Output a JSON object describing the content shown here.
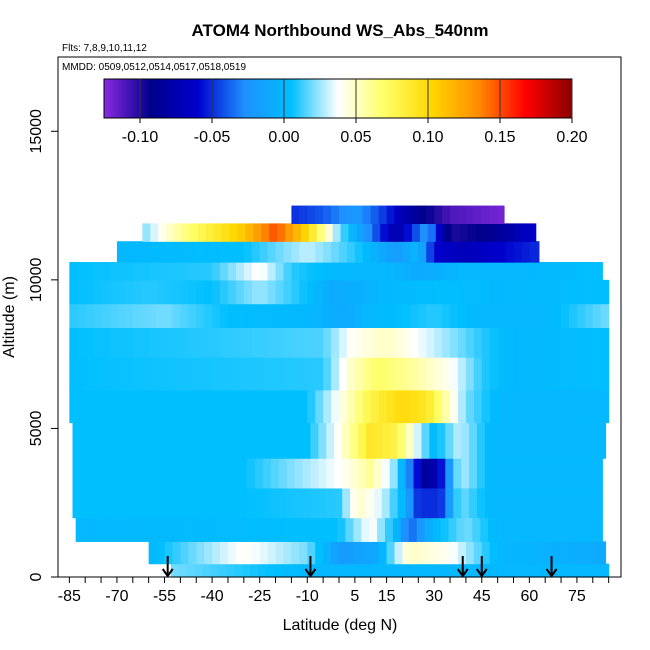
{
  "chart_data": {
    "type": "heatmap",
    "title": "ATOM4 Northbound WS_Abs_540nm",
    "subtitle_flights": "Flts: 7,8,9,10,11,12",
    "subtitle_dates": "MMDD: 0509,0512,0514,0517,0518,0519",
    "xlabel": "Latitude (deg N)",
    "ylabel": "Altitude (m)",
    "xlim": [
      -87,
      87
    ],
    "ylim": [
      0,
      17500
    ],
    "x_ticks": [
      -85,
      -70,
      -55,
      -40,
      -25,
      -10,
      5,
      15,
      30,
      45,
      60,
      75
    ],
    "x_minor_ticks": [
      -85,
      -80,
      -75,
      -70,
      -65,
      -60,
      -55,
      -50,
      -45,
      -40,
      -35,
      -30,
      -25,
      -20,
      -15,
      -10,
      -5,
      0,
      5,
      10,
      15,
      20,
      25,
      30,
      35,
      40,
      45,
      50,
      55,
      60,
      65,
      70,
      75,
      80,
      85
    ],
    "y_ticks": [
      0,
      5000,
      10000,
      15000
    ],
    "colorbar": {
      "min": -0.125,
      "max": 0.2,
      "ticks": [
        -0.1,
        -0.05,
        0.0,
        0.05,
        0.1,
        0.15,
        0.2
      ],
      "tick_labels": [
        "-0.10",
        "-0.05",
        "0.00",
        "0.05",
        "0.10",
        "0.15",
        "0.20"
      ],
      "colors": [
        "#8a2be2",
        "#00008b",
        "#0000cd",
        "#1e90ff",
        "#00bfff",
        "#ffffff",
        "#ffff66",
        "#ffd700",
        "#ff8c00",
        "#ff0000",
        "#8b0000"
      ]
    },
    "profile_markers_latitude": [
      -54,
      -9,
      39,
      45,
      67
    ],
    "bands": [
      {
        "alt": [
          0,
          450
        ],
        "lat": [
          -53,
          85
        ],
        "pts": [
          [
            -53,
            0.02
          ],
          [
            -10,
            0.0
          ],
          [
            15,
            0.0
          ],
          [
            40,
            0.0
          ],
          [
            85,
            0.0
          ]
        ]
      },
      {
        "alt": [
          450,
          1200
        ],
        "lat": [
          -60,
          84
        ],
        "pts": [
          [
            -60,
            0.0
          ],
          [
            -45,
            0.02
          ],
          [
            -30,
            0.04
          ],
          [
            -10,
            0.02
          ],
          [
            0,
            -0.02
          ],
          [
            12,
            -0.01
          ],
          [
            22,
            0.05
          ],
          [
            35,
            0.04
          ],
          [
            50,
            0.0
          ],
          [
            84,
            -0.01
          ]
        ]
      },
      {
        "alt": [
          1200,
          2000
        ],
        "lat": [
          -83,
          83
        ],
        "pts": [
          [
            -83,
            0.0
          ],
          [
            0,
            0.005
          ],
          [
            10,
            0.04
          ],
          [
            18,
            0.0
          ],
          [
            22,
            -0.04
          ],
          [
            30,
            0.0
          ],
          [
            40,
            0.02
          ],
          [
            50,
            0.0
          ],
          [
            83,
            0.0
          ]
        ]
      },
      {
        "alt": [
          2000,
          3000
        ],
        "lat": [
          -84,
          83
        ],
        "pts": [
          [
            -84,
            0.005
          ],
          [
            -30,
            0.005
          ],
          [
            0,
            0.01
          ],
          [
            6,
            0.05
          ],
          [
            14,
            0.03
          ],
          [
            20,
            0.0
          ],
          [
            25,
            -0.05
          ],
          [
            32,
            -0.05
          ],
          [
            38,
            0.02
          ],
          [
            48,
            0.0
          ],
          [
            83,
            0.0
          ]
        ]
      },
      {
        "alt": [
          3000,
          4000
        ],
        "lat": [
          -84,
          83
        ],
        "pts": [
          [
            -84,
            0.005
          ],
          [
            -30,
            0.005
          ],
          [
            2,
            0.04
          ],
          [
            10,
            0.06
          ],
          [
            18,
            0.02
          ],
          [
            23,
            -0.04
          ],
          [
            28,
            -0.09
          ],
          [
            33,
            -0.05
          ],
          [
            38,
            0.03
          ],
          [
            48,
            0.0
          ],
          [
            83,
            0.0
          ]
        ]
      },
      {
        "alt": [
          4000,
          5200
        ],
        "lat": [
          -84,
          84
        ],
        "pts": [
          [
            -84,
            0.005
          ],
          [
            -10,
            0.005
          ],
          [
            0,
            0.04
          ],
          [
            10,
            0.09
          ],
          [
            18,
            0.08
          ],
          [
            25,
            0.03
          ],
          [
            30,
            0.0
          ],
          [
            38,
            0.03
          ],
          [
            48,
            0.0
          ],
          [
            84,
            0.0
          ]
        ]
      },
      {
        "alt": [
          5200,
          6300
        ],
        "lat": [
          -85,
          85
        ],
        "pts": [
          [
            -85,
            0.005
          ],
          [
            -10,
            0.005
          ],
          [
            0,
            0.04
          ],
          [
            10,
            0.08
          ],
          [
            20,
            0.1
          ],
          [
            28,
            0.09
          ],
          [
            33,
            0.06
          ],
          [
            40,
            0.02
          ],
          [
            50,
            0.0
          ],
          [
            85,
            0.0
          ]
        ]
      },
      {
        "alt": [
          6300,
          7400
        ],
        "lat": [
          -85,
          85
        ],
        "pts": [
          [
            -85,
            0.005
          ],
          [
            -5,
            0.01
          ],
          [
            4,
            0.05
          ],
          [
            12,
            0.07
          ],
          [
            22,
            0.06
          ],
          [
            35,
            0.04
          ],
          [
            45,
            0.01
          ],
          [
            55,
            0.0
          ],
          [
            85,
            0.005
          ]
        ]
      },
      {
        "alt": [
          7400,
          8400
        ],
        "lat": [
          -85,
          85
        ],
        "pts": [
          [
            -85,
            0.005
          ],
          [
            -40,
            0.01
          ],
          [
            -5,
            0.015
          ],
          [
            4,
            0.04
          ],
          [
            15,
            0.05
          ],
          [
            30,
            0.03
          ],
          [
            45,
            0.01
          ],
          [
            55,
            0.0
          ],
          [
            85,
            0.005
          ]
        ]
      },
      {
        "alt": [
          8400,
          9200
        ],
        "lat": [
          -85,
          85
        ],
        "pts": [
          [
            -85,
            0.01
          ],
          [
            -55,
            0.02
          ],
          [
            -35,
            0.005
          ],
          [
            -10,
            0.0
          ],
          [
            2,
            -0.01
          ],
          [
            10,
            0.0
          ],
          [
            30,
            0.01
          ],
          [
            45,
            0.0
          ],
          [
            65,
            0.0
          ],
          [
            85,
            0.02
          ]
        ]
      },
      {
        "alt": [
          9200,
          10000
        ],
        "lat": [
          -85,
          85
        ],
        "pts": [
          [
            -85,
            0.005
          ],
          [
            -60,
            0.01
          ],
          [
            -40,
            0.005
          ],
          [
            -25,
            0.025
          ],
          [
            -10,
            0.005
          ],
          [
            -2,
            -0.01
          ],
          [
            15,
            0.0
          ],
          [
            35,
            0.005
          ],
          [
            50,
            0.0
          ],
          [
            85,
            0.005
          ]
        ]
      },
      {
        "alt": [
          10000,
          10600
        ],
        "lat": [
          -85,
          83
        ],
        "pts": [
          [
            -85,
            0.005
          ],
          [
            -40,
            0.01
          ],
          [
            -25,
            0.04
          ],
          [
            -15,
            0.01
          ],
          [
            0,
            0.0
          ],
          [
            15,
            0.0
          ],
          [
            25,
            -0.01
          ],
          [
            40,
            0.0
          ],
          [
            60,
            0.0
          ],
          [
            83,
            0.005
          ]
        ]
      },
      {
        "alt": [
          10600,
          11300
        ],
        "lat": [
          -70,
          63
        ],
        "pts": [
          [
            -70,
            0.0
          ],
          [
            -30,
            0.005
          ],
          [
            -10,
            0.03
          ],
          [
            5,
            0.01
          ],
          [
            18,
            -0.02
          ],
          [
            25,
            0.0
          ],
          [
            30,
            -0.06
          ],
          [
            40,
            -0.07
          ],
          [
            63,
            -0.05
          ]
        ]
      },
      {
        "alt": [
          11300,
          11900
        ],
        "lat": [
          -62,
          62
        ],
        "pts": [
          [
            -62,
            0.02
          ],
          [
            -50,
            0.06
          ],
          [
            -30,
            0.11
          ],
          [
            -20,
            0.15
          ],
          [
            -10,
            0.1
          ],
          [
            0,
            0.02
          ],
          [
            8,
            -0.02
          ],
          [
            18,
            -0.08
          ],
          [
            28,
            -0.02
          ],
          [
            35,
            -0.1
          ],
          [
            48,
            -0.09
          ],
          [
            62,
            -0.06
          ]
        ]
      },
      {
        "alt": [
          11900,
          12500
        ],
        "lat": [
          -15,
          52
        ],
        "pts": [
          [
            -15,
            -0.05
          ],
          [
            -5,
            -0.04
          ],
          [
            5,
            -0.02
          ],
          [
            15,
            -0.05
          ],
          [
            22,
            -0.08
          ],
          [
            35,
            -0.11
          ],
          [
            52,
            -0.12
          ]
        ]
      }
    ]
  }
}
